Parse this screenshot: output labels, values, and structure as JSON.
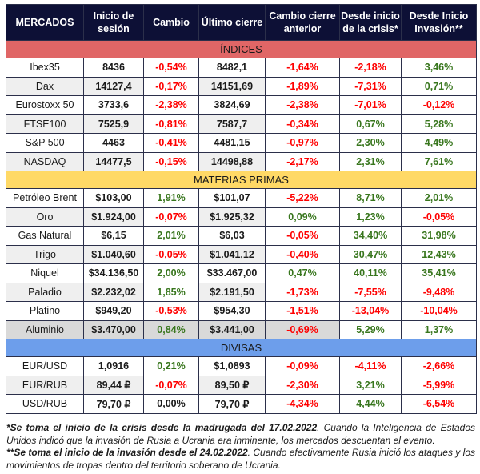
{
  "headers": [
    "MERCADOS",
    "Inicio de sesión",
    "Cambio",
    "Último cierre",
    "Cambio cierre anterior",
    "Desde inicio de la crisis*",
    "Desde Inicio Invasión**"
  ],
  "sections": [
    {
      "title": "ÍNDICES",
      "style": "ind",
      "rows": [
        {
          "name": "Ibex35",
          "inicio": "8436",
          "cambio": [
            "-0,54%",
            "neg"
          ],
          "ultimo": "8482,1",
          "cca": [
            "-1,64%",
            "neg"
          ],
          "crisis": [
            "-2,18%",
            "neg"
          ],
          "invasion": [
            "3,46%",
            "pos"
          ]
        },
        {
          "name": "Dax",
          "inicio": "14127,4",
          "cambio": [
            "-0,17%",
            "neg"
          ],
          "ultimo": "14151,69",
          "cca": [
            "-1,89%",
            "neg"
          ],
          "crisis": [
            "-7,31%",
            "neg"
          ],
          "invasion": [
            "0,71%",
            "pos"
          ]
        },
        {
          "name": "Eurostoxx 50",
          "inicio": "3733,6",
          "cambio": [
            "-2,38%",
            "neg"
          ],
          "ultimo": "3824,69",
          "cca": [
            "-2,38%",
            "neg"
          ],
          "crisis": [
            "-7,01%",
            "neg"
          ],
          "invasion": [
            "-0,12%",
            "neg"
          ]
        },
        {
          "name": "FTSE100",
          "inicio": "7525,9",
          "cambio": [
            "-0,81%",
            "neg"
          ],
          "ultimo": "7587,7",
          "cca": [
            "-0,34%",
            "neg"
          ],
          "crisis": [
            "0,67%",
            "pos"
          ],
          "invasion": [
            "5,28%",
            "pos"
          ]
        },
        {
          "name": "S&P 500",
          "inicio": "4463",
          "cambio": [
            "-0,41%",
            "neg"
          ],
          "ultimo": "4481,15",
          "cca": [
            "-0,97%",
            "neg"
          ],
          "crisis": [
            "2,30%",
            "pos"
          ],
          "invasion": [
            "4,49%",
            "pos"
          ]
        },
        {
          "name": "NASDAQ",
          "inicio": "14477,5",
          "cambio": [
            "-0,15%",
            "neg"
          ],
          "ultimo": "14498,88",
          "cca": [
            "-2,17%",
            "neg"
          ],
          "crisis": [
            "2,31%",
            "pos"
          ],
          "invasion": [
            "7,61%",
            "pos"
          ]
        }
      ]
    },
    {
      "title": "MATERIAS PRIMAS",
      "style": "mat",
      "rows": [
        {
          "name": "Petróleo Brent",
          "inicio": "$103,00",
          "cambio": [
            "1,91%",
            "pos"
          ],
          "ultimo": "$101,07",
          "cca": [
            "-5,22%",
            "neg"
          ],
          "crisis": [
            "8,71%",
            "pos"
          ],
          "invasion": [
            "2,01%",
            "pos"
          ]
        },
        {
          "name": "Oro",
          "inicio": "$1.924,00",
          "cambio": [
            "-0,07%",
            "neg"
          ],
          "ultimo": "$1.925,32",
          "cca": [
            "0,09%",
            "pos"
          ],
          "crisis": [
            "1,23%",
            "pos"
          ],
          "invasion": [
            "-0,05%",
            "neg"
          ]
        },
        {
          "name": "Gas Natural",
          "inicio": "$6,15",
          "cambio": [
            "2,01%",
            "pos"
          ],
          "ultimo": "$6,03",
          "cca": [
            "-0,05%",
            "neg"
          ],
          "crisis": [
            "34,40%",
            "pos"
          ],
          "invasion": [
            "31,98%",
            "pos"
          ]
        },
        {
          "name": "Trigo",
          "inicio": "$1.040,60",
          "cambio": [
            "-0,05%",
            "neg"
          ],
          "ultimo": "$1.041,12",
          "cca": [
            "-0,40%",
            "neg"
          ],
          "crisis": [
            "30,47%",
            "pos"
          ],
          "invasion": [
            "12,43%",
            "pos"
          ]
        },
        {
          "name": "Niquel",
          "inicio": "$34.136,50",
          "cambio": [
            "2,00%",
            "pos"
          ],
          "ultimo": "$33.467,00",
          "cca": [
            "0,47%",
            "pos"
          ],
          "crisis": [
            "40,11%",
            "pos"
          ],
          "invasion": [
            "35,41%",
            "pos"
          ]
        },
        {
          "name": "Paladio",
          "inicio": "$2.232,02",
          "cambio": [
            "1,85%",
            "pos"
          ],
          "ultimo": "$2.191,50",
          "cca": [
            "-1,73%",
            "neg"
          ],
          "crisis": [
            "-7,55%",
            "neg"
          ],
          "invasion": [
            "-9,48%",
            "neg"
          ]
        },
        {
          "name": "Platino",
          "inicio": "$949,20",
          "cambio": [
            "-0,53%",
            "neg"
          ],
          "ultimo": "$954,30",
          "cca": [
            "-1,51%",
            "neg"
          ],
          "crisis": [
            "-13,04%",
            "neg"
          ],
          "invasion": [
            "-10,04%",
            "neg"
          ]
        },
        {
          "name": "Aluminio",
          "inicio": "$3.470,00",
          "cambio": [
            "0,84%",
            "pos"
          ],
          "ultimo": "$3.441,00",
          "cca": [
            "-0,69%",
            "neg"
          ],
          "crisis": [
            "5,29%",
            "pos"
          ],
          "invasion": [
            "1,37%",
            "pos"
          ]
        }
      ]
    },
    {
      "title": "DIVISAS",
      "style": "div",
      "rows": [
        {
          "name": "EUR/USD",
          "inicio": "1,0916",
          "cambio": [
            "0,21%",
            "pos"
          ],
          "ultimo": "$1,0893",
          "cca": [
            "-0,09%",
            "neg"
          ],
          "crisis": [
            "-4,11%",
            "neg"
          ],
          "invasion": [
            "-2,66%",
            "neg"
          ]
        },
        {
          "name": "EUR/RUB",
          "inicio": "89,44 ₽",
          "cambio": [
            "-0,07%",
            "neg"
          ],
          "ultimo": "89,50 ₽",
          "cca": [
            "-2,30%",
            "neg"
          ],
          "crisis": [
            "3,21%",
            "pos"
          ],
          "invasion": [
            "-5,99%",
            "neg"
          ]
        },
        {
          "name": "USD/RUB",
          "inicio": "79,70 ₽",
          "cambio": [
            "0,00%",
            "neu"
          ],
          "ultimo": "79,70 ₽",
          "cca": [
            "-4,34%",
            "neg"
          ],
          "crisis": [
            "4,44%",
            "pos"
          ],
          "invasion": [
            "-6,54%",
            "neg"
          ]
        }
      ]
    }
  ],
  "footnotes": {
    "note1_bold": "*Se toma el inicio de la crisis desde la madrugada del 17.02.2022",
    "note1_rest": ". Cuando la Inteligencia de Estados Unidos indicó que la invasión de Rusia a Ucrania era inminente, los mercados descuentan el evento.",
    "note2_bold": "**Se toma el inicio de la invasión desde el 24.02.2022",
    "note2_rest": ". Cuando efectivamente Rusia inició los ataques y los movimientos de tropas dentro del territorio soberano de Ucrania."
  },
  "colors": {
    "header": "#0d1036",
    "indices": "#e06666",
    "materias": "#ffd966",
    "divisas": "#6d9eeb",
    "positive": "#38761d",
    "negative": "#ff0000"
  }
}
